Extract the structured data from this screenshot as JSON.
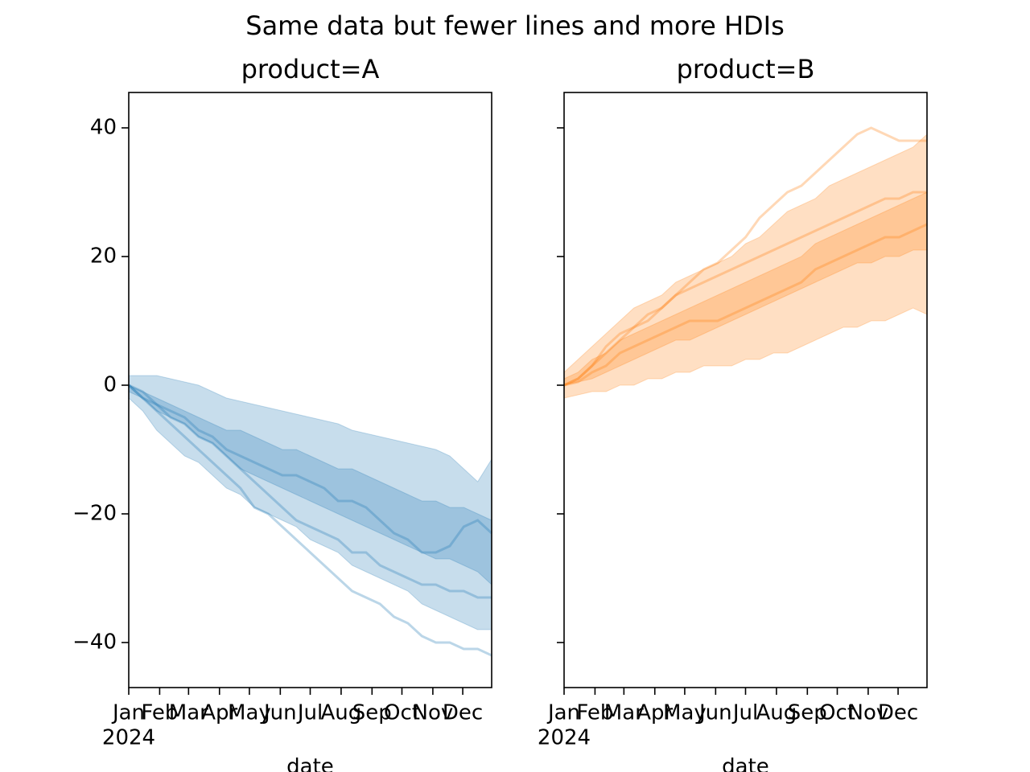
{
  "title": "Same data but fewer lines and more HDIs",
  "chart_data": [
    {
      "type": "line",
      "title": "product=A",
      "xlabel": "date",
      "xtick_year": "2024",
      "x": [
        "2024-01-01",
        "2024-01-15",
        "2024-01-29",
        "2024-02-12",
        "2024-02-26",
        "2024-03-11",
        "2024-03-25",
        "2024-04-08",
        "2024-04-22",
        "2024-05-06",
        "2024-05-20",
        "2024-06-03",
        "2024-06-17",
        "2024-07-01",
        "2024-07-15",
        "2024-07-29",
        "2024-08-12",
        "2024-08-26",
        "2024-09-09",
        "2024-09-23",
        "2024-10-07",
        "2024-10-21",
        "2024-11-04",
        "2024-11-18",
        "2024-12-02",
        "2024-12-16",
        "2024-12-30"
      ],
      "xlim": [
        "2024-01-01",
        "2024-12-30"
      ],
      "xticks": [
        {
          "value": "2024-01-01",
          "label": "Jan"
        },
        {
          "value": "2024-02-01",
          "label": "Feb"
        },
        {
          "value": "2024-03-01",
          "label": "Mar"
        },
        {
          "value": "2024-04-01",
          "label": "Apr"
        },
        {
          "value": "2024-05-01",
          "label": "May"
        },
        {
          "value": "2024-06-01",
          "label": "Jun"
        },
        {
          "value": "2024-07-01",
          "label": "Jul"
        },
        {
          "value": "2024-08-01",
          "label": "Aug"
        },
        {
          "value": "2024-09-01",
          "label": "Sep"
        },
        {
          "value": "2024-10-01",
          "label": "Oct"
        },
        {
          "value": "2024-11-01",
          "label": "Nov"
        },
        {
          "value": "2024-12-01",
          "label": "Dec"
        }
      ],
      "ylim": [
        -47,
        45.5
      ],
      "yticks": [
        -40,
        -20,
        0,
        20,
        40
      ],
      "show_ytick_labels": true,
      "color": "#1f77b4",
      "bands": [
        {
          "opacity": 0.25,
          "lower": [
            -2,
            -4,
            -7,
            -9,
            -11,
            -12,
            -14,
            -16,
            -17,
            -19,
            -20,
            -21,
            -22,
            -24,
            -25,
            -26,
            -28,
            -29,
            -30,
            -31,
            -32,
            -34,
            -35,
            -36,
            -37,
            -38,
            -38
          ],
          "upper": [
            1.5,
            1.5,
            1.5,
            1,
            0.5,
            0,
            -1,
            -2,
            -2.5,
            -3,
            -3.5,
            -4,
            -4.5,
            -5,
            -5.5,
            -6,
            -7,
            -7.5,
            -8,
            -8.5,
            -9,
            -9.5,
            -10,
            -11,
            -13,
            -15,
            -11.5
          ]
        },
        {
          "opacity": 0.25,
          "lower": [
            -1,
            -2,
            -4,
            -5,
            -6,
            -8,
            -9,
            -11,
            -13,
            -14,
            -15,
            -16,
            -17,
            -18,
            -19,
            -20,
            -21,
            -22,
            -23,
            -24,
            -25,
            -26,
            -27,
            -27,
            -28,
            -29,
            -31
          ],
          "upper": [
            0,
            -1,
            -2,
            -3,
            -4,
            -5,
            -6,
            -7,
            -7,
            -8,
            -9,
            -10,
            -10,
            -11,
            -12,
            -13,
            -13,
            -14,
            -15,
            -16,
            -17,
            -18,
            -18,
            -19,
            -19,
            -20,
            -21
          ]
        }
      ],
      "series": [
        {
          "values": [
            0,
            -2,
            -4,
            -6,
            -8,
            -10,
            -12,
            -14,
            -16,
            -19,
            -20,
            -22,
            -24,
            -26,
            -28,
            -30,
            -32,
            -33,
            -34,
            -36,
            -37,
            -39,
            -40,
            -40,
            -41,
            -41,
            -42
          ]
        },
        {
          "values": [
            0,
            -2,
            -3,
            -5,
            -6,
            -8,
            -9,
            -11,
            -13,
            -15,
            -17,
            -19,
            -21,
            -22,
            -23,
            -24,
            -26,
            -26,
            -28,
            -29,
            -30,
            -31,
            -31,
            -32,
            -32,
            -33,
            -33
          ]
        },
        {
          "values": [
            0,
            -1,
            -3,
            -4,
            -5,
            -7,
            -8,
            -10,
            -11,
            -12,
            -13,
            -14,
            -14,
            -15,
            -16,
            -18,
            -18,
            -19,
            -21,
            -23,
            -24,
            -26,
            -26,
            -25,
            -22,
            -21,
            -23
          ]
        }
      ]
    },
    {
      "type": "line",
      "title": "product=B",
      "xlabel": "date",
      "xtick_year": "2024",
      "x": [
        "2024-01-01",
        "2024-01-15",
        "2024-01-29",
        "2024-02-12",
        "2024-02-26",
        "2024-03-11",
        "2024-03-25",
        "2024-04-08",
        "2024-04-22",
        "2024-05-06",
        "2024-05-20",
        "2024-06-03",
        "2024-06-17",
        "2024-07-01",
        "2024-07-15",
        "2024-07-29",
        "2024-08-12",
        "2024-08-26",
        "2024-09-09",
        "2024-09-23",
        "2024-10-07",
        "2024-10-21",
        "2024-11-04",
        "2024-11-18",
        "2024-12-02",
        "2024-12-16",
        "2024-12-30"
      ],
      "xlim": [
        "2024-01-01",
        "2024-12-30"
      ],
      "xticks": [
        {
          "value": "2024-01-01",
          "label": "Jan"
        },
        {
          "value": "2024-02-01",
          "label": "Feb"
        },
        {
          "value": "2024-03-01",
          "label": "Mar"
        },
        {
          "value": "2024-04-01",
          "label": "Apr"
        },
        {
          "value": "2024-05-01",
          "label": "May"
        },
        {
          "value": "2024-06-01",
          "label": "Jun"
        },
        {
          "value": "2024-07-01",
          "label": "Jul"
        },
        {
          "value": "2024-08-01",
          "label": "Aug"
        },
        {
          "value": "2024-09-01",
          "label": "Sep"
        },
        {
          "value": "2024-10-01",
          "label": "Oct"
        },
        {
          "value": "2024-11-01",
          "label": "Nov"
        },
        {
          "value": "2024-12-01",
          "label": "Dec"
        }
      ],
      "ylim": [
        -47,
        45.5
      ],
      "yticks": [
        -40,
        -20,
        0,
        20,
        40
      ],
      "show_ytick_labels": false,
      "color": "#ff7f0e",
      "bands": [
        {
          "opacity": 0.25,
          "lower": [
            -2,
            -1.5,
            -1,
            -1,
            0,
            0,
            1,
            1,
            2,
            2,
            3,
            3,
            3,
            4,
            4,
            5,
            5,
            6,
            7,
            8,
            9,
            9,
            10,
            10,
            11,
            12,
            11
          ],
          "upper": [
            2,
            4,
            6,
            8,
            10,
            12,
            13,
            14,
            16,
            17,
            18,
            19,
            20,
            22,
            23,
            25,
            27,
            28,
            29,
            31,
            32,
            33,
            34,
            35,
            36,
            37,
            39
          ]
        },
        {
          "opacity": 0.25,
          "lower": [
            0,
            0.5,
            1,
            2,
            3,
            4,
            5,
            6,
            7,
            7,
            8,
            9,
            10,
            11,
            12,
            13,
            14,
            15,
            16,
            17,
            18,
            19,
            19,
            20,
            20,
            21,
            21
          ],
          "upper": [
            1,
            2,
            4,
            5,
            7,
            8,
            9,
            10,
            11,
            12,
            13,
            14,
            15,
            16,
            17,
            18,
            19,
            20,
            22,
            23,
            24,
            25,
            26,
            27,
            28,
            29,
            30
          ]
        }
      ],
      "series": [
        {
          "values": [
            0,
            1,
            3,
            6,
            8,
            9,
            11,
            12,
            14,
            16,
            18,
            19,
            21,
            23,
            26,
            28,
            30,
            31,
            33,
            35,
            37,
            39,
            40,
            39,
            38,
            38,
            38
          ]
        },
        {
          "values": [
            0,
            1,
            3,
            5,
            7,
            9,
            10,
            12,
            14,
            15,
            16,
            17,
            18,
            19,
            20,
            21,
            22,
            23,
            24,
            25,
            26,
            27,
            28,
            29,
            29,
            30,
            30
          ]
        },
        {
          "values": [
            0,
            0.5,
            2,
            3,
            5,
            6,
            7,
            8,
            9,
            10,
            10,
            10,
            11,
            12,
            13,
            14,
            15,
            16,
            18,
            19,
            20,
            21,
            22,
            23,
            23,
            24,
            25
          ]
        }
      ]
    }
  ]
}
